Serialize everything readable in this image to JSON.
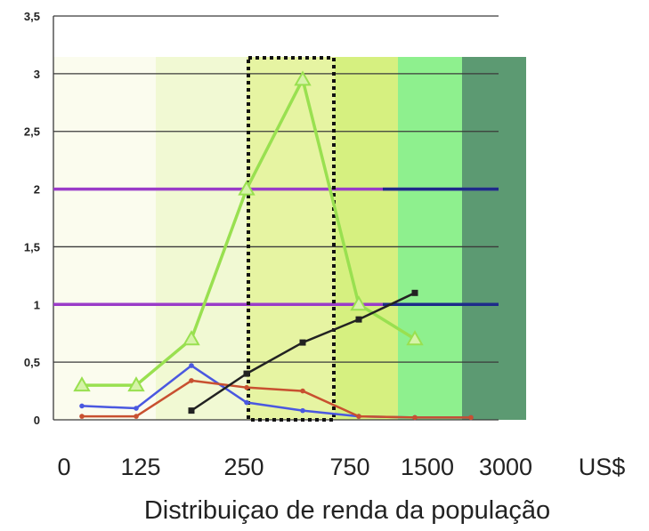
{
  "chart_data": {
    "type": "line",
    "title": "",
    "xlabel": "Distribuiçao de renda da população",
    "ylabel": "",
    "ylim": [
      0,
      3.5
    ],
    "yticks": [
      "0",
      "0,5",
      "1",
      "1,5",
      "2",
      "2,5",
      "3",
      "3,5"
    ],
    "yticks_values": [
      0,
      0.5,
      1,
      1.5,
      2,
      2.5,
      3,
      3.5
    ],
    "x_tick_labels": [
      "0",
      "125",
      "250",
      "750",
      "1500",
      "3000",
      "US$"
    ],
    "grid": true,
    "reference_lines": [
      {
        "y": 1,
        "color": "#9a3cc8"
      },
      {
        "y": 2,
        "color": "#9a3cc8"
      }
    ],
    "highlight_box": {
      "x_from": 250,
      "x_to": 750,
      "style": "dotted"
    },
    "income_bands": [
      {
        "from": "0",
        "to": "125",
        "color": "#fbfcee"
      },
      {
        "from": "125",
        "to": "250",
        "color": "#f1f9d3"
      },
      {
        "from": "250",
        "to": "750",
        "color": "#e6f4a2"
      },
      {
        "from": "750",
        "to": "1500",
        "color": "#d6f080"
      },
      {
        "from": "1500",
        "to": "3000",
        "color": "#8ef08e"
      },
      {
        "from": "3000",
        "to": "US$",
        "color": "#5c9a72"
      }
    ],
    "series": [
      {
        "color": "#99e050",
        "marker": "triangle",
        "values": [
          0.3,
          0.3,
          0.7,
          2.0,
          2.95,
          1.0,
          0.7
        ]
      },
      {
        "color": "#4a58e0",
        "marker": "circle",
        "values": [
          0.12,
          0.1,
          0.47,
          0.15,
          0.08,
          0.03,
          0.02,
          0.02
        ]
      },
      {
        "color": "#c85030",
        "marker": "circle",
        "values": [
          0.03,
          0.03,
          0.34,
          0.28,
          0.25,
          0.03,
          0.02,
          0.02
        ]
      },
      {
        "color": "#222222",
        "marker": "square",
        "values": [
          0.08,
          0.4,
          0.67,
          0.87,
          1.1
        ]
      }
    ]
  }
}
